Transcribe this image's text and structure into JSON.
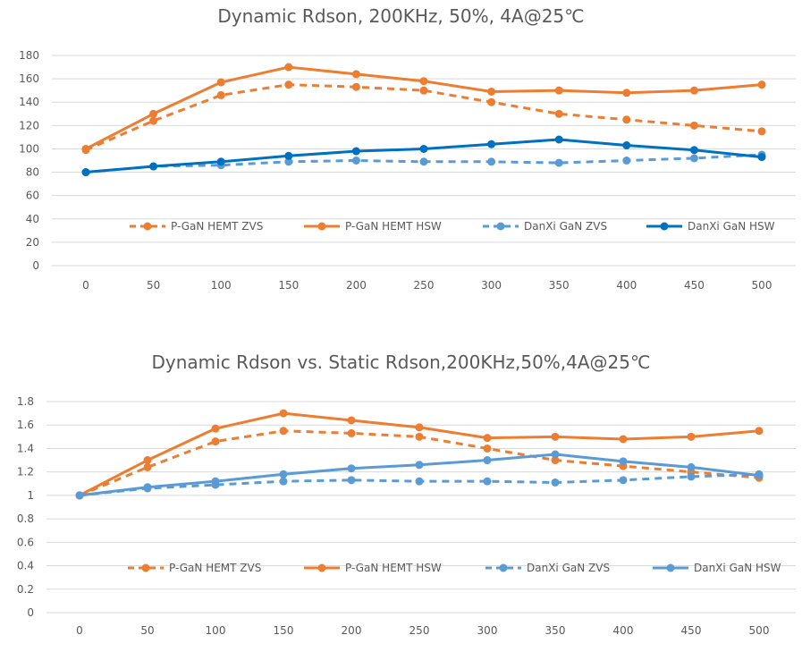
{
  "chart_data": [
    {
      "type": "line",
      "title": "Dynamic Rdson, 200KHz, 50%, 4A@25℃",
      "x": [
        0,
        50,
        100,
        150,
        200,
        250,
        300,
        350,
        400,
        450,
        500
      ],
      "categories": [
        "0",
        "50",
        "100",
        "150",
        "200",
        "250",
        "300",
        "350",
        "400",
        "450",
        "500"
      ],
      "ylim": [
        0,
        180
      ],
      "yticks": [
        "0",
        "20",
        "40",
        "60",
        "80",
        "100",
        "120",
        "140",
        "160",
        "180"
      ],
      "grid": true,
      "legend_position": "bottom-inside",
      "series": [
        {
          "name": "P-GaN HEMT ZVS",
          "color": "#ED7D31",
          "dashed": true,
          "values": [
            99,
            124,
            146,
            155,
            153,
            150,
            140,
            130,
            125,
            120,
            115
          ]
        },
        {
          "name": "P-GaN HEMT HSW",
          "color": "#ED7D31",
          "dashed": false,
          "values": [
            100,
            130,
            157,
            170,
            164,
            158,
            149,
            150,
            148,
            150,
            155
          ]
        },
        {
          "name": "DanXi GaN ZVS",
          "color": "#5B9BD5",
          "dashed": true,
          "values": [
            80,
            85,
            86,
            89,
            90,
            89,
            89,
            88,
            90,
            92,
            95
          ]
        },
        {
          "name": "DanXi GaN HSW",
          "color": "#0070C0",
          "dashed": false,
          "values": [
            80,
            85,
            89,
            94,
            98,
            100,
            104,
            108,
            103,
            99,
            93
          ]
        }
      ]
    },
    {
      "type": "line",
      "title": "Dynamic Rdson vs. Static Rdson,200KHz,50%,4A@25℃",
      "x": [
        0,
        50,
        100,
        150,
        200,
        250,
        300,
        350,
        400,
        450,
        500
      ],
      "categories": [
        "0",
        "50",
        "100",
        "150",
        "200",
        "250",
        "300",
        "350",
        "400",
        "450",
        "500"
      ],
      "ylim": [
        0,
        1.8
      ],
      "yticks": [
        "0",
        "0.2",
        "0.4",
        "0.6",
        "0.8",
        "1",
        "1.2",
        "1.4",
        "1.6",
        "1.8"
      ],
      "grid": true,
      "legend_position": "bottom-inside",
      "series": [
        {
          "name": "P-GaN HEMT ZVS",
          "color": "#ED7D31",
          "dashed": true,
          "values": [
            1.0,
            1.24,
            1.46,
            1.55,
            1.53,
            1.5,
            1.4,
            1.3,
            1.25,
            1.2,
            1.15
          ]
        },
        {
          "name": "P-GaN HEMT HSW",
          "color": "#ED7D31",
          "dashed": false,
          "values": [
            1.0,
            1.3,
            1.57,
            1.7,
            1.64,
            1.58,
            1.49,
            1.5,
            1.48,
            1.5,
            1.55
          ]
        },
        {
          "name": "DanXi GaN ZVS",
          "color": "#5B9BD5",
          "dashed": true,
          "values": [
            1.0,
            1.06,
            1.09,
            1.12,
            1.13,
            1.12,
            1.12,
            1.11,
            1.13,
            1.16,
            1.18
          ]
        },
        {
          "name": "DanXi GaN HSW",
          "color": "#5B9BD5",
          "dashed": false,
          "values": [
            1.0,
            1.07,
            1.12,
            1.18,
            1.23,
            1.26,
            1.3,
            1.35,
            1.29,
            1.24,
            1.17
          ]
        }
      ]
    }
  ]
}
